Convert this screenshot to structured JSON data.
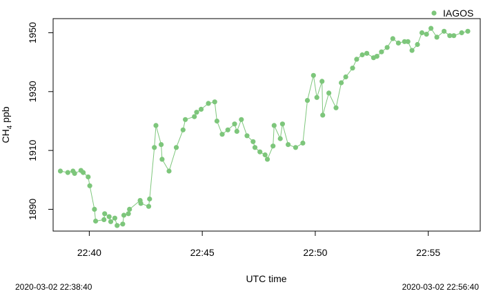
{
  "chart_data": {
    "type": "line",
    "xlabel": "UTC time",
    "ylabel_main": "CH",
    "ylabel_sub": "4",
    "ylabel_unit": " ppb",
    "x_unit": "minutes after 22:00 UTC",
    "xlim": [
      38.4,
      57.3
    ],
    "ylim": [
      1882.6,
      1954.8
    ],
    "x_ticks": [
      {
        "value": 40,
        "label": "22:40"
      },
      {
        "value": 45,
        "label": "22:45"
      },
      {
        "value": 50,
        "label": "22:50"
      },
      {
        "value": 55,
        "label": "22:55"
      }
    ],
    "y_ticks": [
      {
        "value": 1890,
        "label": "1890"
      },
      {
        "value": 1910,
        "label": "1910"
      },
      {
        "value": 1930,
        "label": "1930"
      },
      {
        "value": 1950,
        "label": "1950"
      }
    ],
    "series": [
      {
        "name": "IAGOS",
        "color": "#7dc67b",
        "x": [
          38.72,
          39.05,
          39.28,
          39.35,
          39.63,
          39.73,
          39.95,
          40.02,
          40.23,
          40.28,
          40.65,
          40.68,
          40.88,
          40.95,
          41.13,
          41.23,
          41.48,
          41.53,
          41.73,
          41.78,
          42.25,
          42.28,
          42.63,
          42.67,
          42.88,
          42.95,
          43.18,
          43.22,
          43.53,
          43.85,
          44.15,
          44.25,
          44.65,
          44.75,
          44.95,
          45.27,
          45.55,
          45.65,
          45.88,
          46.13,
          46.43,
          46.53,
          46.73,
          46.98,
          47.25,
          47.33,
          47.55,
          47.78,
          47.88,
          48.13,
          48.18,
          48.45,
          48.55,
          48.8,
          49.13,
          49.45,
          49.65,
          49.92,
          50.07,
          50.3,
          50.33,
          50.6,
          50.92,
          51.15,
          51.35,
          51.65,
          51.83,
          52.08,
          52.28,
          52.58,
          52.73,
          52.93,
          53.18,
          53.43,
          53.68,
          53.95,
          54.1,
          54.28,
          54.52,
          54.72,
          54.92,
          55.12,
          55.38,
          55.7,
          55.95,
          56.13,
          56.48,
          56.75
        ],
        "y": [
          1903.0,
          1902.5,
          1903.0,
          1902.2,
          1903.2,
          1902.5,
          1901.0,
          1898.0,
          1890.0,
          1886.0,
          1886.5,
          1888.5,
          1887.5,
          1885.8,
          1887.0,
          1884.5,
          1885.0,
          1888.0,
          1888.5,
          1890.0,
          1893.0,
          1892.0,
          1891.0,
          1893.5,
          1911.0,
          1918.5,
          1912.0,
          1907.0,
          1903.0,
          1911.0,
          1917.0,
          1920.5,
          1921.5,
          1923.0,
          1924.0,
          1926.0,
          1926.5,
          1920.0,
          1915.5,
          1917.0,
          1919.0,
          1916.5,
          1920.5,
          1915.0,
          1913.0,
          1911.0,
          1909.5,
          1908.5,
          1907.0,
          1911.5,
          1918.5,
          1914.0,
          1919.0,
          1912.0,
          1911.0,
          1912.5,
          1927.0,
          1935.5,
          1928.0,
          1933.5,
          1922.0,
          1929.5,
          1924.5,
          1933.0,
          1935.0,
          1938.0,
          1941.0,
          1942.5,
          1943.0,
          1941.5,
          1942.0,
          1943.5,
          1945.0,
          1948.0,
          1946.5,
          1947.0,
          1947.0,
          1944.0,
          1946.0,
          1950.0,
          1949.5,
          1951.5,
          1948.5,
          1950.5,
          1949.0,
          1949.0,
          1950.0,
          1950.5
        ]
      }
    ],
    "legend_position": "top-right",
    "grid": false
  },
  "footer": {
    "start_time": "2020-03-02 22:38:40",
    "end_time": "2020-03-02 22:56:40"
  }
}
